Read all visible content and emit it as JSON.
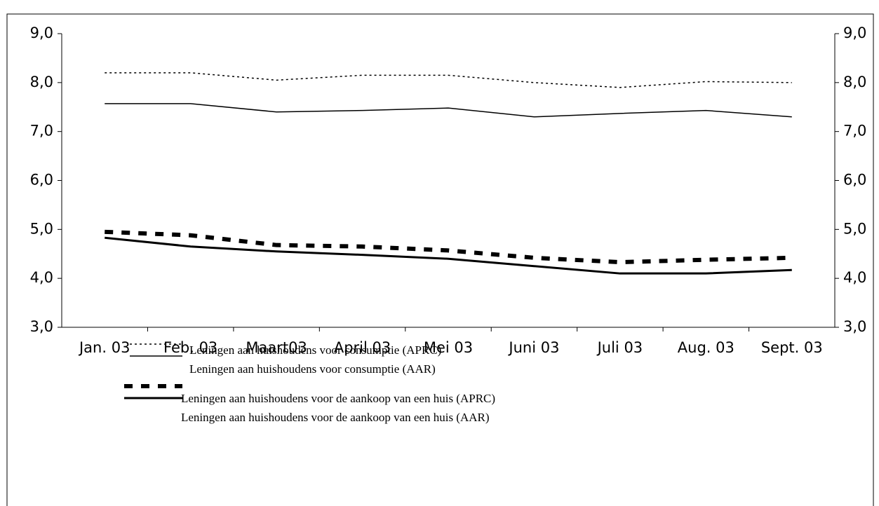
{
  "chart_data": {
    "type": "line",
    "categories": [
      "Jan. 03",
      "Feb. 03",
      "Maart03",
      "April 03",
      "Mei 03",
      "Juni 03",
      "Juli 03",
      "Aug. 03",
      "Sept. 03"
    ],
    "series": [
      {
        "name": "Leningen aan huishoudens voor consumptie (APRC)",
        "color": "#000000",
        "style": "dotted",
        "values": [
          8.2,
          8.2,
          8.05,
          8.15,
          8.15,
          8.0,
          7.9,
          8.02,
          8.0
        ]
      },
      {
        "name": "Leningen aan huishoudens voor consumptie (AAR)",
        "color": "#000000",
        "style": "thin",
        "values": [
          7.57,
          7.57,
          7.4,
          7.43,
          7.48,
          7.3,
          7.37,
          7.43,
          7.3
        ]
      },
      {
        "name": "Leningen aan huishoudens voor de aankoop van een huis (APRC)",
        "color": "#000000",
        "style": "dashed",
        "values": [
          4.95,
          4.88,
          4.68,
          4.65,
          4.57,
          4.42,
          4.33,
          4.38,
          4.42
        ]
      },
      {
        "name": "Leningen aan huishoudens voor de aankoop van een huis (AAR)",
        "color": "#000000",
        "style": "thick",
        "values": [
          4.83,
          4.65,
          4.55,
          4.48,
          4.4,
          4.25,
          4.1,
          4.1,
          4.17
        ]
      }
    ],
    "ylim": [
      3,
      9
    ],
    "yticks": [
      {
        "value": 3,
        "label": "3,0"
      },
      {
        "value": 4,
        "label": "4,0"
      },
      {
        "value": 5,
        "label": "5,0"
      },
      {
        "value": 6,
        "label": "6,0"
      },
      {
        "value": 7,
        "label": "7,0"
      },
      {
        "value": 8,
        "label": "8,0"
      },
      {
        "value": 9,
        "label": "9,0"
      }
    ],
    "legend": "bottom-left"
  }
}
